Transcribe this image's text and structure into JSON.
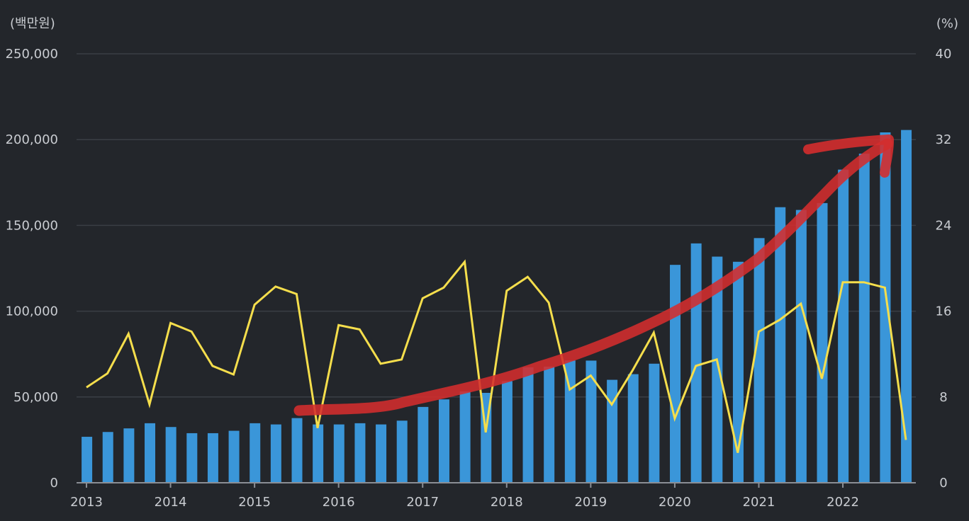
{
  "chart_data": {
    "type": "bar+line",
    "title": "",
    "left_unit": "(백만원)",
    "right_unit": "(%)",
    "y_left": {
      "lim": [
        0,
        250000
      ],
      "ticks": [
        "0",
        "50,000",
        "100,000",
        "150,000",
        "200,000",
        "250,000"
      ]
    },
    "y_right": {
      "lim": [
        0,
        40
      ],
      "ticks": [
        "0",
        "8",
        "16",
        "24",
        "32",
        "40"
      ]
    },
    "x_tick_labels": [
      "2013",
      "2014",
      "2015",
      "2016",
      "2017",
      "2018",
      "2019",
      "2020",
      "2021",
      "2022"
    ],
    "quarters": 40,
    "grid": true,
    "series": [
      {
        "axis": "left",
        "kind": "bar",
        "color": "#3a96d9",
        "values": [
          26800,
          29600,
          31700,
          34700,
          32500,
          28900,
          28900,
          30300,
          34700,
          34000,
          37700,
          34000,
          34000,
          34700,
          34000,
          36200,
          44200,
          48600,
          53200,
          52400,
          59200,
          67300,
          67700,
          71300,
          71200,
          60000,
          63300,
          69400,
          127000,
          139500,
          131800,
          128800,
          142600,
          160600,
          159000,
          163000,
          182500,
          191800,
          204200,
          205600
        ]
      },
      {
        "axis": "right",
        "kind": "line",
        "color": "#f5de4c",
        "values": [
          8.9,
          10.2,
          13.9,
          7.3,
          14.9,
          14.1,
          10.9,
          10.1,
          16.6,
          18.3,
          17.6,
          5.1,
          14.7,
          14.3,
          11.1,
          11.5,
          17.2,
          18.2,
          20.6,
          4.7,
          17.9,
          19.2,
          16.8,
          8.7,
          10.0,
          7.3,
          10.5,
          14.0,
          6.0,
          10.9,
          11.5,
          2.8,
          14.1,
          15.2,
          16.7,
          9.7,
          18.7,
          18.7,
          18.2,
          4.0
        ]
      }
    ],
    "annotation": {
      "kind": "hand-drawn-trend-arrow",
      "color": "#d42d2e"
    }
  }
}
